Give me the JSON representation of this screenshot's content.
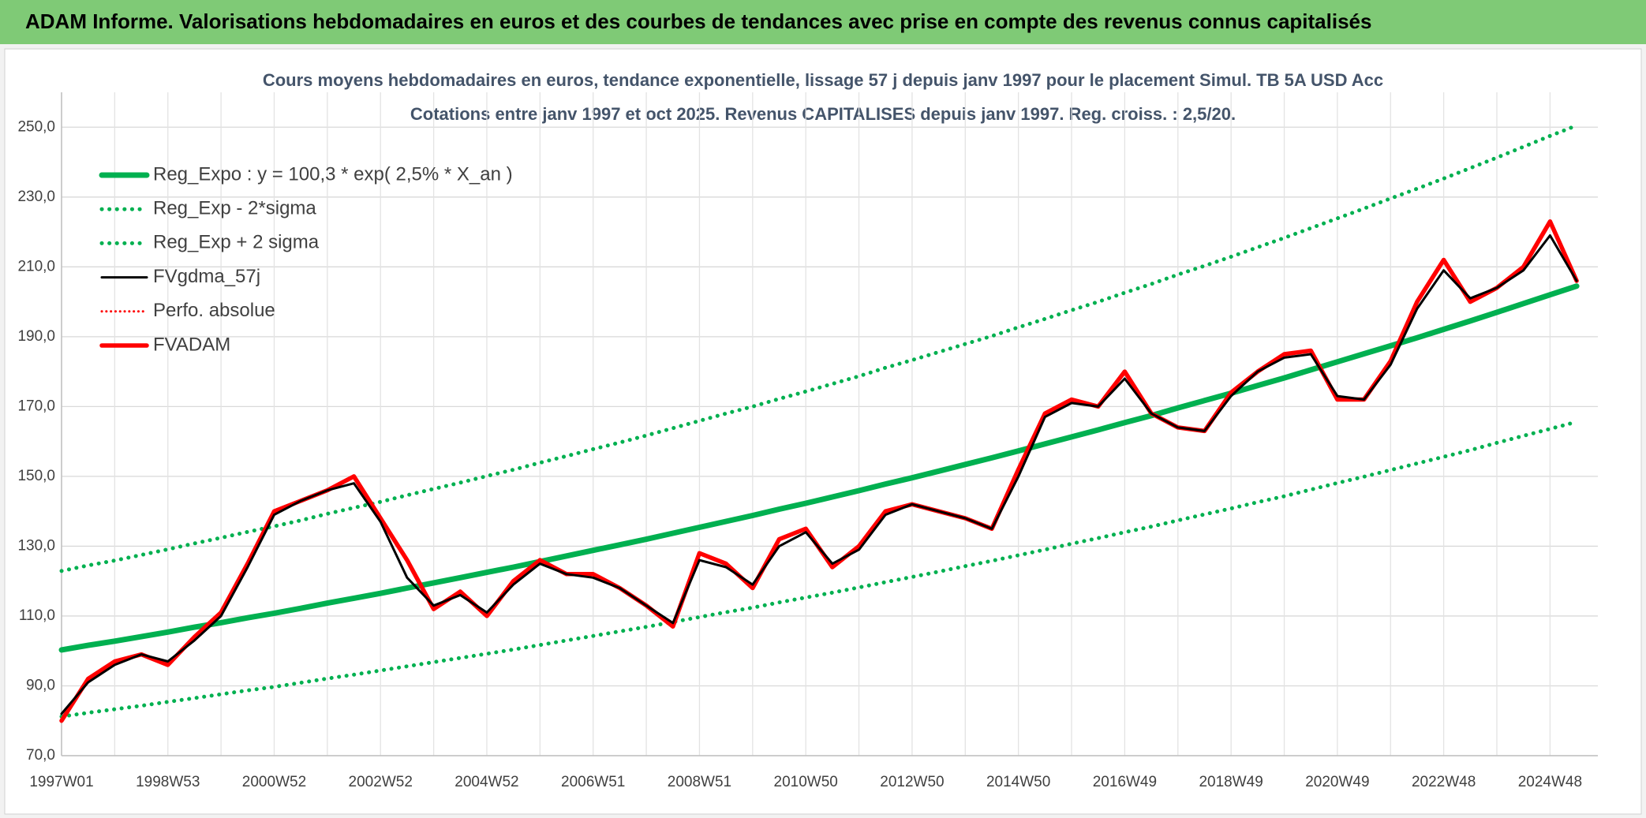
{
  "header_title": "ADAM Informe. Valorisations hebdomadaires en euros et des courbes de tendances avec prise en compte des revenus connus capitalisés",
  "chart_data": {
    "type": "line",
    "title": [
      "Cours moyens hebdomadaires en euros, tendance exponentielle, lissage 57 j depuis janv 1997 pour le placement Simul. TB 5A USD Acc",
      "Cotations entre janv 1997 et oct 2025. Revenus CAPITALISES depuis janv 1997. Reg. croiss. : 2,5/20."
    ],
    "categories": [
      "1997W01",
      null,
      null,
      null,
      "1998W53",
      null,
      null,
      null,
      "2000W52",
      null,
      null,
      null,
      "2002W52",
      null,
      null,
      null,
      "2004W52",
      null,
      null,
      null,
      "2006W51",
      null,
      null,
      null,
      "2008W51",
      null,
      null,
      null,
      "2010W50",
      null,
      null,
      null,
      "2012W50",
      null,
      null,
      null,
      "2014W50",
      null,
      null,
      null,
      "2016W49",
      null,
      null,
      null,
      "2018W49",
      null,
      null,
      null,
      "2020W49",
      null,
      null,
      null,
      "2022W48",
      null,
      null,
      null,
      "2024W48",
      null
    ],
    "series": [
      {
        "name": "Reg_Expo : y = 100,3 * exp( 2,5% *  X_an )",
        "color": "#00b050",
        "line_style": "solid",
        "values": [
          100.3,
          101.6,
          102.8,
          104.1,
          105.4,
          106.8,
          108.1,
          109.5,
          110.8,
          112.2,
          113.7,
          115.1,
          116.5,
          118.0,
          119.5,
          121.0,
          122.5,
          124.0,
          125.6,
          127.2,
          128.8,
          130.4,
          132.0,
          133.7,
          135.4,
          137.1,
          138.8,
          140.6,
          142.3,
          144.1,
          145.9,
          147.8,
          149.6,
          151.5,
          153.4,
          155.3,
          157.3,
          159.3,
          161.3,
          163.3,
          165.4,
          167.4,
          169.6,
          171.7,
          173.8,
          176.0,
          178.2,
          180.5,
          182.8,
          185.1,
          187.4,
          189.7,
          192.1,
          194.5,
          197.0,
          199.5,
          202.0,
          204.5
        ]
      },
      {
        "name": "Reg_Exp - 2*sigma",
        "color": "#00b050",
        "line_style": "dotted",
        "values": [
          81.2,
          82.3,
          83.3,
          84.3,
          85.4,
          86.5,
          87.6,
          88.7,
          89.7,
          90.9,
          92.1,
          93.2,
          94.4,
          95.6,
          96.8,
          98.0,
          99.2,
          100.4,
          101.7,
          103.0,
          104.3,
          105.6,
          106.9,
          108.3,
          109.7,
          111.1,
          112.4,
          113.9,
          115.3,
          116.7,
          118.2,
          119.7,
          121.2,
          122.7,
          124.3,
          125.8,
          127.4,
          129.0,
          130.7,
          132.3,
          134.0,
          135.6,
          137.4,
          139.1,
          140.8,
          142.6,
          144.3,
          146.2,
          148.1,
          149.9,
          151.8,
          153.7,
          155.6,
          157.5,
          159.6,
          161.6,
          163.6,
          165.6
        ]
      },
      {
        "name": "Reg_Exp + 2 sigma",
        "color": "#00b050",
        "line_style": "dotted",
        "values": [
          122.9,
          124.5,
          125.9,
          127.5,
          129.1,
          130.8,
          132.4,
          134.1,
          135.7,
          137.4,
          139.3,
          141.0,
          142.7,
          144.6,
          146.4,
          148.2,
          150.1,
          151.9,
          153.9,
          155.8,
          157.8,
          159.7,
          161.7,
          163.8,
          165.9,
          168.0,
          170.0,
          172.2,
          174.3,
          176.5,
          178.7,
          181.1,
          183.3,
          185.6,
          187.9,
          190.2,
          192.7,
          195.1,
          197.6,
          200.0,
          202.6,
          205.1,
          207.8,
          210.3,
          212.9,
          215.6,
          218.3,
          221.1,
          223.9,
          226.7,
          229.6,
          232.4,
          235.3,
          238.3,
          241.3,
          244.4,
          247.5,
          250.5
        ]
      },
      {
        "name": "FVgdma_57j",
        "color": "#000000",
        "line_style": "solid",
        "values": [
          82,
          91,
          96,
          99,
          97,
          103,
          110,
          124,
          139,
          143,
          146,
          148,
          137,
          121,
          113,
          116,
          111,
          119,
          125,
          122,
          121,
          118,
          113,
          108,
          126,
          124,
          119,
          130,
          134,
          125,
          129,
          139,
          142,
          140,
          138,
          135,
          150,
          167,
          171,
          170,
          178,
          168,
          164,
          163,
          173,
          180,
          184,
          185,
          173,
          172,
          182,
          198,
          209,
          201,
          204,
          209,
          219,
          206
        ]
      },
      {
        "name": "Perfo. absolue",
        "color": "#ff0000",
        "line_style": "dotted",
        "values": [
          80,
          92,
          97,
          99,
          96,
          104,
          111,
          125,
          140,
          143,
          146,
          150,
          138,
          126,
          112,
          117,
          110,
          120,
          126,
          122,
          122,
          118,
          113,
          107,
          128,
          125,
          118,
          132,
          135,
          124,
          130,
          140,
          142,
          140,
          138,
          135,
          152,
          168,
          172,
          170,
          180,
          168,
          164,
          163,
          174,
          180,
          185,
          186,
          172,
          172,
          183,
          200,
          212,
          200,
          204,
          210,
          223,
          206
        ]
      },
      {
        "name": "FVADAM",
        "color": "#ff0000",
        "line_style": "solid",
        "values": [
          80,
          92,
          97,
          99,
          96,
          104,
          111,
          125,
          140,
          143,
          146,
          150,
          138,
          126,
          112,
          117,
          110,
          120,
          126,
          122,
          122,
          118,
          113,
          107,
          128,
          125,
          118,
          132,
          135,
          124,
          130,
          140,
          142,
          140,
          138,
          135,
          152,
          168,
          172,
          170,
          180,
          168,
          164,
          163,
          174,
          180,
          185,
          186,
          172,
          172,
          183,
          200,
          212,
          200,
          204,
          210,
          223,
          206
        ]
      }
    ],
    "ylim": [
      70,
      260
    ],
    "yticks": [
      {
        "value": 70,
        "label": "70,0"
      },
      {
        "value": 90,
        "label": "90,0"
      },
      {
        "value": 110,
        "label": "110,0"
      },
      {
        "value": 130,
        "label": "130,0"
      },
      {
        "value": 150,
        "label": "150,0"
      },
      {
        "value": 170,
        "label": "170,0"
      },
      {
        "value": 190,
        "label": "190,0"
      },
      {
        "value": 210,
        "label": "210,0"
      },
      {
        "value": 230,
        "label": "230,0"
      },
      {
        "value": 250,
        "label": "250,0"
      }
    ],
    "grid": true,
    "legend": "upper left"
  }
}
